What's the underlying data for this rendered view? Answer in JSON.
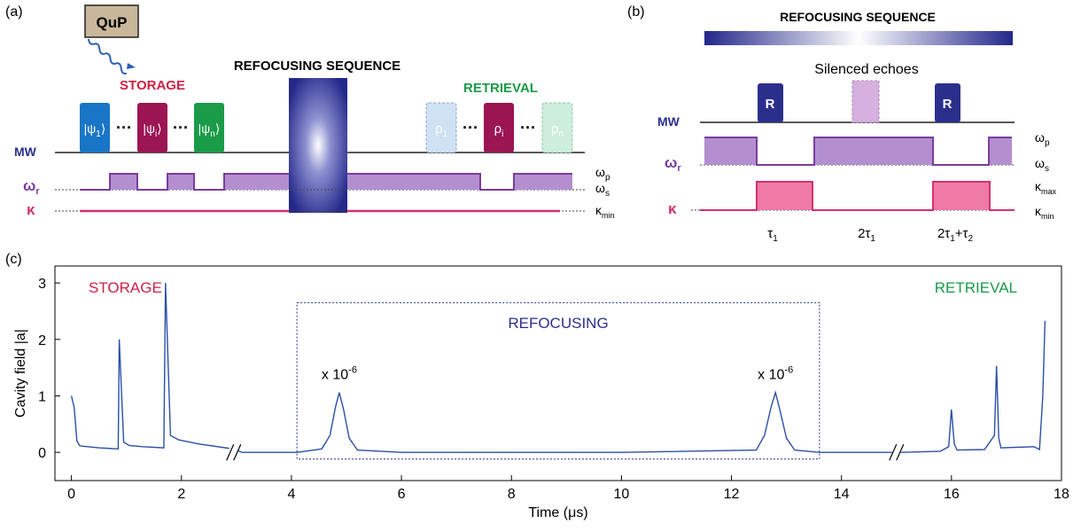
{
  "panels": {
    "a": {
      "panel_label": "(a)",
      "qup_label": "QuP",
      "storage_label": "STORAGE",
      "refocusing_label": "REFOCUSING SEQUENCE",
      "retrieval_label": "RETRIEVAL",
      "mw_label": "MW",
      "omega_r_label": "ω",
      "omega_r_sub": "r",
      "kappa_label": "κ",
      "omega_p_label": "ω",
      "omega_p_sub": "p",
      "omega_s_label": "ω",
      "omega_s_sub": "s",
      "kappa_min_label": "κ",
      "kappa_min_sub": "min",
      "ellipsis": "···",
      "storage_pulses": [
        {
          "pre": "|ψ",
          "sub": "1",
          "post": "⟩",
          "color": "#1976c7"
        },
        {
          "pre": "|ψ",
          "sub": "i",
          "post": "⟩",
          "color": "#9c1553"
        },
        {
          "pre": "|ψ",
          "sub": "n",
          "post": "⟩",
          "color": "#1a9b48"
        }
      ],
      "retrieval_pulses": [
        {
          "pre": "ρ",
          "sub": "1",
          "color": "#cfe2f3"
        },
        {
          "pre": "ρ",
          "sub": "i",
          "color": "#9c1553"
        },
        {
          "pre": "ρ",
          "sub": "n",
          "color": "#cdeedd"
        }
      ]
    },
    "b": {
      "panel_label": "(b)",
      "title": "REFOCUSING SEQUENCE",
      "silenced_label": "Silenced echoes",
      "pulse_label": "R",
      "mw_label": "MW",
      "omega_r_label": "ω",
      "omega_r_sub": "r",
      "kappa_label": "κ",
      "omega_p_label": "ω",
      "omega_p_sub": "p",
      "omega_s_label": "ω",
      "omega_s_sub": "s",
      "kappa_max_label": "κ",
      "kappa_max_sub": "max",
      "kappa_min_label": "κ",
      "kappa_min_sub": "min",
      "time_labels": [
        {
          "pre": "τ",
          "sub": "1",
          "post": ""
        },
        {
          "pre": "2τ",
          "sub": "1",
          "post": ""
        },
        {
          "pre": "2τ",
          "sub": "1",
          "post": "+τ",
          "sub2": "2"
        }
      ]
    },
    "c": {
      "panel_label": "(c)",
      "storage_label": "STORAGE",
      "retrieval_label": "RETRIEVAL",
      "refocusing_label": "REFOCUSING",
      "scale_note": "x 10",
      "scale_exp": "-6"
    }
  },
  "colors": {
    "storage": "#cc2244",
    "retrieval": "#1a9b48",
    "navy": "#2b2f8c",
    "trace": "#2b4fa8",
    "omega_fill": "#b38fd0",
    "omega_line": "#7a3d9e",
    "kappa_line": "#d6306e",
    "kappa_fill": "#ef7aa6"
  },
  "chart_data": {
    "type": "line",
    "title": "",
    "xlabel": "Time (μs)",
    "ylabel": "Cavity field |a|",
    "xlim": [
      -0.3,
      18
    ],
    "ylim": [
      -0.5,
      3.3
    ],
    "x_ticks": [
      0,
      2,
      4,
      6,
      8,
      10,
      12,
      14,
      16,
      18
    ],
    "y_ticks": [
      0,
      1,
      2,
      3
    ],
    "axis_breaks_x": [
      2.95,
      15.0
    ],
    "refocusing_window": [
      4.1,
      13.6
    ],
    "series": [
      {
        "x": [
          0.0,
          0.05,
          0.1,
          0.15,
          0.2,
          0.5,
          0.85,
          0.87,
          0.95,
          1.05,
          1.3,
          1.68,
          1.71,
          1.8,
          1.95,
          2.3,
          2.94,
          3.1,
          4.1,
          4.55,
          4.7,
          4.8,
          4.87,
          4.95,
          5.05,
          5.2,
          6.0,
          8.0,
          10.0,
          12.45,
          12.6,
          12.72,
          12.8,
          12.88,
          13.0,
          13.15,
          13.6,
          14.0,
          14.9,
          15.1,
          15.8,
          15.95,
          16.0,
          16.05,
          16.1,
          16.6,
          16.78,
          16.82,
          16.86,
          16.9,
          17.5,
          17.6,
          17.66,
          17.7
        ],
        "y": [
          1.0,
          0.8,
          0.2,
          0.12,
          0.11,
          0.08,
          0.06,
          2.0,
          0.18,
          0.12,
          0.1,
          0.08,
          3.0,
          0.3,
          0.22,
          0.15,
          0.06,
          0.0,
          0.0,
          0.06,
          0.3,
          0.8,
          1.06,
          0.75,
          0.25,
          0.04,
          0.0,
          0.0,
          0.0,
          0.04,
          0.3,
          0.8,
          1.06,
          0.75,
          0.25,
          0.04,
          0.0,
          0.0,
          0.0,
          0.0,
          0.02,
          0.1,
          0.76,
          0.15,
          0.04,
          0.05,
          0.3,
          1.53,
          0.25,
          0.08,
          0.1,
          0.05,
          1.0,
          2.33
        ]
      }
    ]
  }
}
